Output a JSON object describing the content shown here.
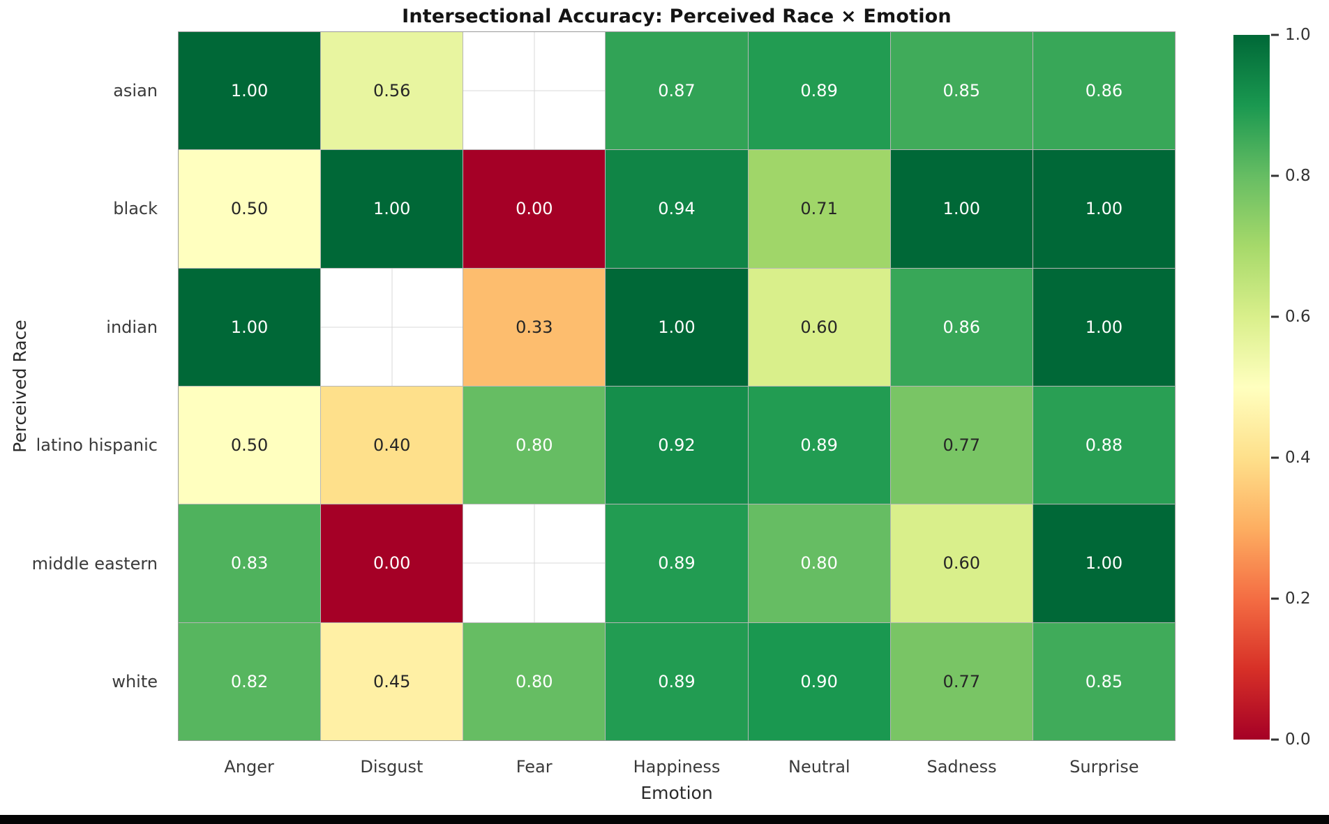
{
  "chart_data": {
    "type": "heatmap",
    "title": "Intersectional Accuracy: Perceived Race × Emotion",
    "xlabel": "Emotion",
    "ylabel": "Perceived Race",
    "x_categories": [
      "Anger",
      "Disgust",
      "Fear",
      "Happiness",
      "Neutral",
      "Sadness",
      "Surprise"
    ],
    "y_categories": [
      "asian",
      "black",
      "indian",
      "latino hispanic",
      "middle eastern",
      "white"
    ],
    "values": [
      [
        1.0,
        0.56,
        null,
        0.87,
        0.89,
        0.85,
        0.86
      ],
      [
        0.5,
        1.0,
        0.0,
        0.94,
        0.71,
        1.0,
        1.0
      ],
      [
        1.0,
        null,
        0.33,
        1.0,
        0.6,
        0.86,
        1.0
      ],
      [
        0.5,
        0.4,
        0.8,
        0.92,
        0.89,
        0.77,
        0.88
      ],
      [
        0.83,
        0.0,
        null,
        0.89,
        0.8,
        0.6,
        1.0
      ],
      [
        0.82,
        0.45,
        0.8,
        0.89,
        0.9,
        0.77,
        0.85
      ]
    ],
    "missing_cells": [
      [
        "asian",
        "Fear"
      ],
      [
        "indian",
        "Disgust"
      ],
      [
        "middle eastern",
        "Fear"
      ]
    ],
    "value_decimals": 2,
    "vmin": 0.0,
    "vmax": 1.0,
    "colormap": "RdYlGn",
    "colormap_stops": [
      "#a50026",
      "#d73027",
      "#f46d43",
      "#fdae61",
      "#fee08b",
      "#ffffbf",
      "#d9ef8b",
      "#a6d96a",
      "#66bd63",
      "#1a9850",
      "#006837"
    ],
    "colorbar_ticks": [
      "1.0",
      "0.8",
      "0.6",
      "0.4",
      "0.2",
      "0.0"
    ],
    "legend_position": "right-colorbar",
    "grid": "off (faint whitegrid visible behind missing cells)"
  },
  "colors": {
    "background": "#ffffff",
    "title_text": "#141414",
    "tick_text": "#3a3a3a",
    "annot_dark": "#262626",
    "annot_light": "#ffffff",
    "cell_border": "#878787",
    "missing_grid_line": "#d9d9d9",
    "tick_mark": "#333333",
    "bottom_bar": "#050505"
  }
}
